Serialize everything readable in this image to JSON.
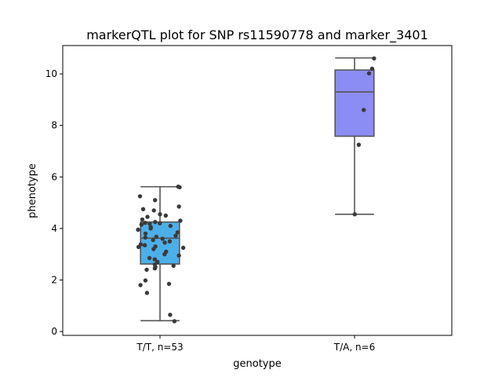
{
  "chart_data": {
    "type": "box",
    "title": "markerQTL plot for SNP rs11590778 and marker_3401",
    "xlabel": "genotype",
    "ylabel": "phenotype",
    "ylim": [
      -0.15,
      11.1
    ],
    "yticks": [
      0,
      2,
      4,
      6,
      8,
      10
    ],
    "categories": [
      "T/T, n=53",
      "T/A, n=6"
    ],
    "box_colors": [
      "#4dafe8",
      "#8c8cf5"
    ],
    "point_color": "#3a3a3a",
    "edge_color": "#555555",
    "boxes": [
      {
        "category": "T/T, n=53",
        "whisker_low": 0.42,
        "q1": 2.62,
        "median": 3.62,
        "q3": 4.25,
        "whisker_high": 5.62
      },
      {
        "category": "T/A, n=6",
        "whisker_low": 4.55,
        "q1": 7.58,
        "median": 9.3,
        "q3": 10.15,
        "whisker_high": 10.62
      }
    ],
    "points": [
      [
        5.62,
        5.6,
        5.25,
        5.1,
        4.85,
        4.75,
        4.7,
        4.55,
        4.5,
        4.45,
        4.35,
        4.3,
        4.25,
        4.22,
        4.2,
        4.18,
        4.15,
        4.1,
        4.05,
        4.0,
        3.95,
        3.85,
        3.8,
        3.72,
        3.68,
        3.65,
        3.6,
        3.55,
        3.5,
        3.45,
        3.38,
        3.35,
        3.3,
        3.28,
        3.25,
        3.2,
        3.1,
        3.0,
        2.95,
        2.85,
        2.8,
        2.7,
        2.6,
        2.55,
        2.5,
        2.45,
        2.4,
        1.98,
        1.85,
        1.8,
        1.5,
        0.65,
        0.4
      ],
      [
        10.6,
        10.2,
        10.02,
        8.6,
        7.25,
        4.55
      ]
    ]
  }
}
